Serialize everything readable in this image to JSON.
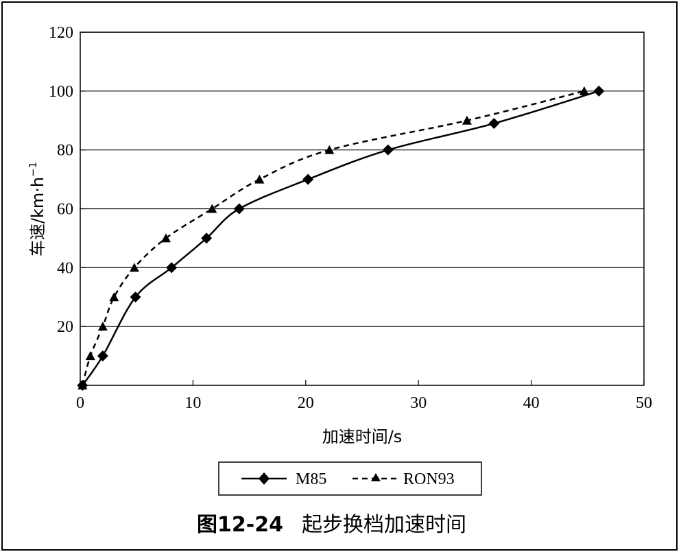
{
  "chart_data": {
    "type": "line",
    "xlabel": "加速时间/s",
    "ylabel": "车速/km·h",
    "ylabel_sup": "−1",
    "xlim": [
      0,
      50
    ],
    "ylim": [
      0,
      120
    ],
    "xticks": [
      "0",
      "10",
      "20",
      "30",
      "40",
      "50"
    ],
    "yticks": [
      "20",
      "40",
      "60",
      "80",
      "100",
      "120"
    ],
    "grid": "horizontal",
    "legend_position": "bottom",
    "series": [
      {
        "name": "M85",
        "style": "solid",
        "marker": "diamond",
        "color": "#000000",
        "x": [
          0.2,
          2.0,
          4.9,
          8.1,
          11.2,
          14.1,
          20.2,
          27.3,
          36.7,
          46.0
        ],
        "y": [
          0,
          10,
          30,
          40,
          50,
          60,
          70,
          80,
          89,
          100
        ]
      },
      {
        "name": "RON93",
        "style": "dashed",
        "marker": "triangle",
        "color": "#000000",
        "x": [
          0.2,
          0.9,
          2.0,
          3.0,
          4.8,
          7.6,
          11.7,
          15.9,
          22.1,
          34.3,
          44.7
        ],
        "y": [
          0,
          10,
          20,
          30,
          40,
          50,
          60,
          70,
          80,
          90,
          100
        ]
      }
    ]
  },
  "caption": {
    "figure_number": "图12-24",
    "title": "起步换档加速时间"
  }
}
